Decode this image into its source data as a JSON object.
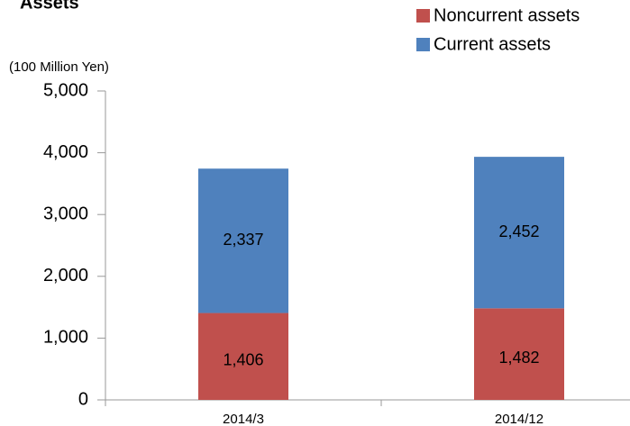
{
  "chart_data": {
    "type": "stacked_bar",
    "title": "Assets",
    "y_label": "(100 Million Yen)",
    "categories": [
      "2014/3",
      "2014/12"
    ],
    "series": [
      {
        "name": "Noncurrent assets",
        "color": "#c0504d",
        "values": [
          1406,
          1482
        ],
        "value_labels": [
          "1,406",
          "1,482"
        ]
      },
      {
        "name": "Current assets",
        "color": "#4f81bd",
        "values": [
          2337,
          2452
        ],
        "value_labels": [
          "2,337",
          "2,452"
        ]
      }
    ],
    "ylim": [
      0,
      5000
    ],
    "yticks": [
      0,
      {
        "value": 1000,
        "label": "1,000"
      },
      {
        "value": 2000,
        "label": "2,000"
      },
      {
        "value": 3000,
        "label": "3,000"
      },
      {
        "value": 4000,
        "label": "4,000"
      },
      {
        "value": 5000,
        "label": "5,000"
      }
    ],
    "grid": false
  }
}
